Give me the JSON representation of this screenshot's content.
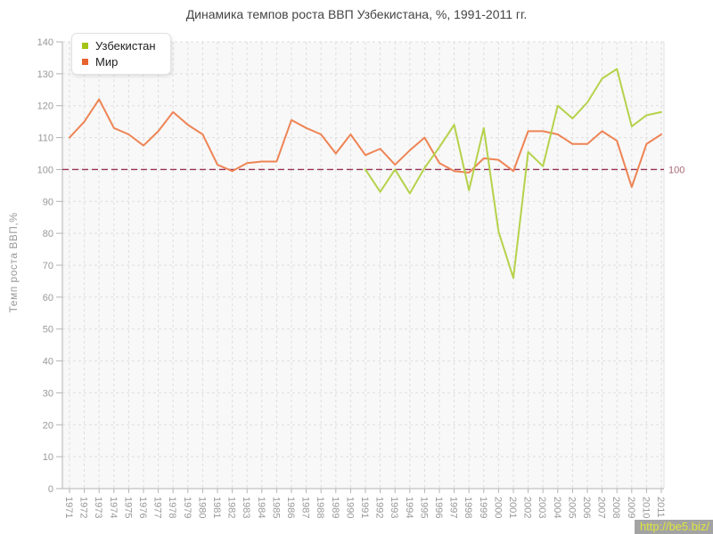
{
  "title": "Динамика темпов роста ВВП Узбекистана, %, 1991-2011 гг.",
  "y_axis": {
    "label": "Темп роста ВВП,%",
    "ticks": [
      0,
      10,
      20,
      30,
      40,
      50,
      60,
      70,
      80,
      90,
      100,
      110,
      120,
      130,
      140
    ]
  },
  "x_axis": {
    "ticks": [
      1971,
      1972,
      1973,
      1974,
      1975,
      1976,
      1977,
      1978,
      1979,
      1980,
      1981,
      1982,
      1983,
      1984,
      1985,
      1986,
      1987,
      1988,
      1989,
      1990,
      1991,
      1992,
      1993,
      1994,
      1995,
      1996,
      1997,
      1998,
      1999,
      2000,
      2001,
      2002,
      2003,
      2004,
      2005,
      2006,
      2007,
      2008,
      2009,
      2010,
      2011
    ]
  },
  "reference_line": {
    "value": 100,
    "label": "100",
    "color": "#993355",
    "label_color": "#a76a76"
  },
  "legend": {
    "items": [
      {
        "label": "Узбекистан",
        "swatch": "#a3c414"
      },
      {
        "label": "Мир",
        "swatch": "#e8622d"
      }
    ]
  },
  "watermark": {
    "text": "http://be5.biz/",
    "bg": "#a3a3a3",
    "fg": "#dde53c"
  },
  "colors": {
    "plot_bg": "#f8f8f8",
    "grid": "#dedede",
    "axis": "#b3b3b3",
    "tick_label": "#999999",
    "title": "#444444"
  },
  "chart_data": {
    "type": "line",
    "title": "Динамика темпов роста ВВП Узбекистана, %, 1991-2011 гг.",
    "xlabel": "",
    "ylabel": "Темп роста ВВП,%",
    "ylim": [
      0,
      140
    ],
    "grid": true,
    "legend_position": "top-left",
    "x": [
      1971,
      1972,
      1973,
      1974,
      1975,
      1976,
      1977,
      1978,
      1979,
      1980,
      1981,
      1982,
      1983,
      1984,
      1985,
      1986,
      1987,
      1988,
      1989,
      1990,
      1991,
      1992,
      1993,
      1994,
      1995,
      1996,
      1997,
      1998,
      1999,
      2000,
      2001,
      2002,
      2003,
      2004,
      2005,
      2006,
      2007,
      2008,
      2009,
      2010,
      2011
    ],
    "series": [
      {
        "name": "Узбекистан",
        "color": "#b5d24b",
        "values": [
          null,
          null,
          null,
          null,
          null,
          null,
          null,
          null,
          null,
          null,
          null,
          null,
          null,
          null,
          null,
          null,
          null,
          null,
          null,
          null,
          100,
          93,
          100,
          92.5,
          100.5,
          107,
          114,
          93.5,
          113,
          80.5,
          66,
          105.5,
          101,
          120,
          116,
          121,
          128.5,
          131.5,
          113.5,
          117,
          118
        ]
      },
      {
        "name": "Мир",
        "color": "#ee8455",
        "values": [
          110,
          115,
          122,
          113,
          111,
          107.5,
          112,
          118,
          114,
          111,
          101.5,
          99.5,
          102,
          102.5,
          102.5,
          115.5,
          113,
          111,
          105,
          111,
          104.5,
          106.5,
          101.5,
          106,
          110,
          102,
          99.5,
          99,
          103.5,
          103,
          99.5,
          112,
          112,
          111,
          108,
          108,
          112,
          109,
          94.5,
          108,
          111
        ]
      }
    ]
  }
}
